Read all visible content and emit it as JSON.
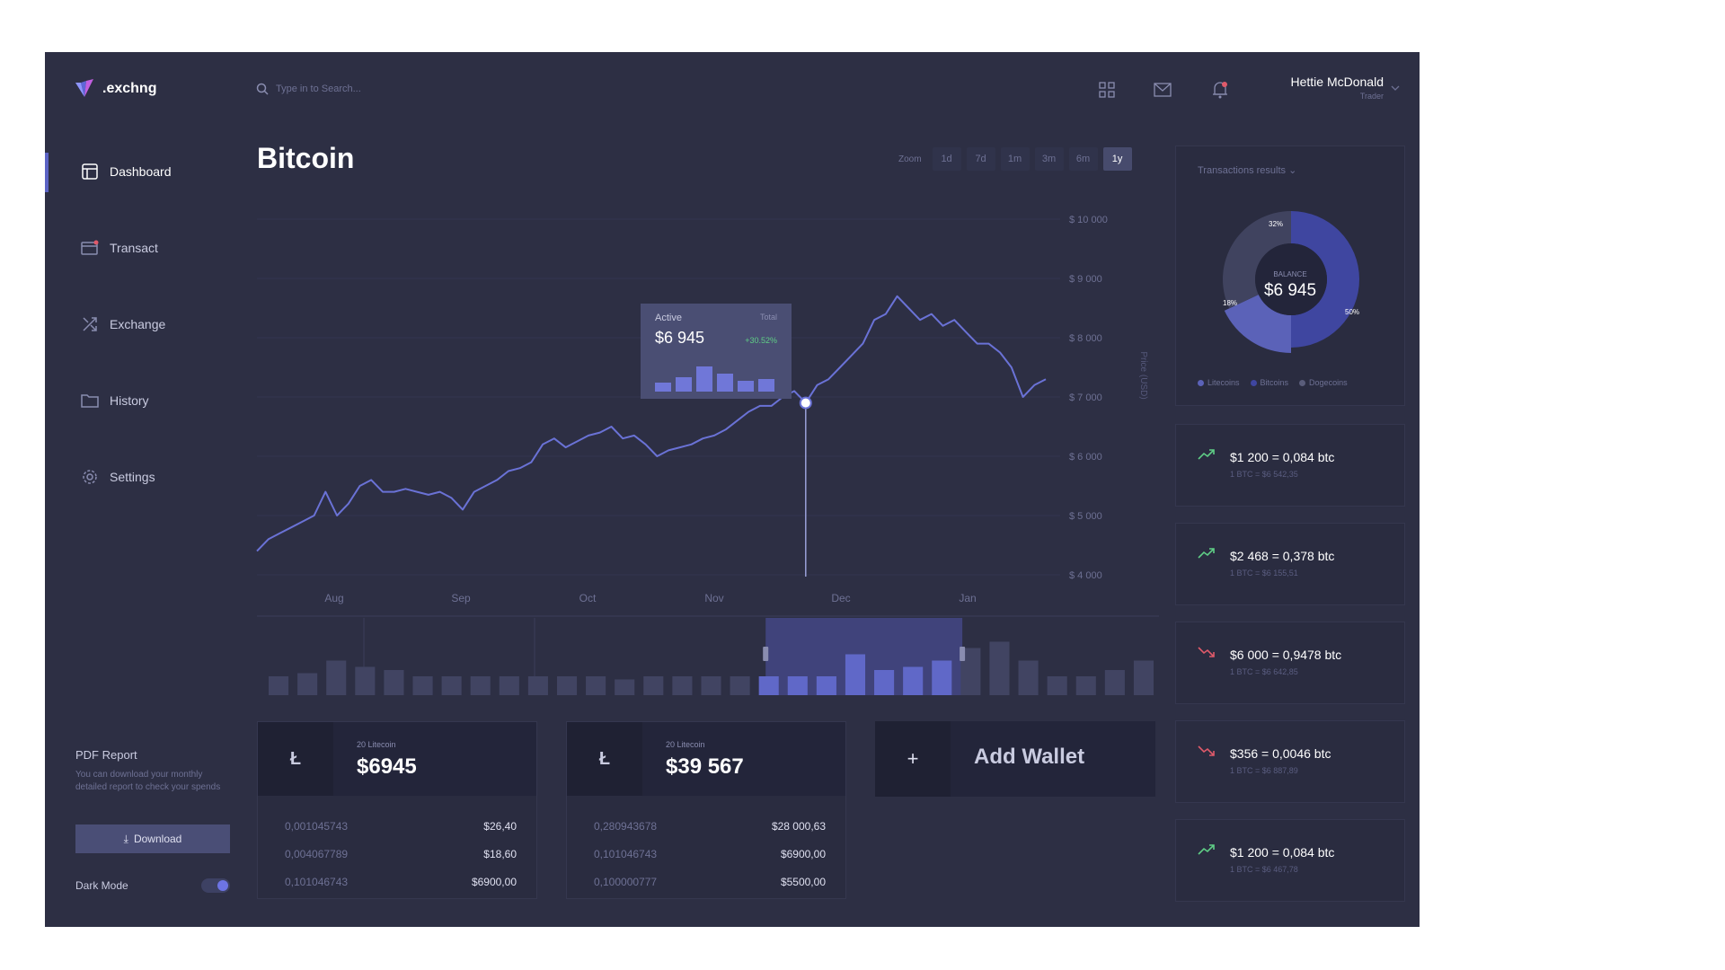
{
  "app": {
    "logo_text": ".exchng"
  },
  "search": {
    "placeholder": "Type in to Search..."
  },
  "nav": [
    {
      "label": "Dashboard"
    },
    {
      "label": "Transact"
    },
    {
      "label": "Exchange"
    },
    {
      "label": "History"
    },
    {
      "label": "Settings"
    }
  ],
  "pdf_report": {
    "title": "PDF Report",
    "description": "You can download your monthly detailed report to check your spends",
    "button": "Download"
  },
  "dark_mode": {
    "label": "Dark Mode",
    "on": true
  },
  "user": {
    "name": "Hettie McDonald",
    "role": "Trader"
  },
  "page": {
    "title": "Bitcoin"
  },
  "zoom": {
    "label": "Zoom",
    "options": [
      "1d",
      "7d",
      "1m",
      "3m",
      "6m",
      "1y"
    ],
    "selected": "1y"
  },
  "chart_data": {
    "type": "line",
    "title": "",
    "xlabel": "",
    "ylabel": "Price (USD)",
    "x_ticks": [
      "Aug",
      "Sep",
      "Oct",
      "Nov",
      "Dec",
      "Jan"
    ],
    "y_ticks": [
      "$ 10 000",
      "$ 9 000",
      "$ 8 000",
      "$ 7 000",
      "$ 6 000",
      "$ 5 000",
      "$ 4 000"
    ],
    "ylim": [
      4000,
      10000
    ],
    "series": [
      {
        "values": [
          4400,
          4600,
          4700,
          4800,
          4900,
          5000,
          5400,
          5000,
          5200,
          5500,
          5600,
          5400,
          5400,
          5450,
          5400,
          5350,
          5400,
          5300,
          5100,
          5400,
          5500,
          5600,
          5750,
          5800,
          5900,
          6200,
          6300,
          6150,
          6250,
          6350,
          6400,
          6500,
          6300,
          6350,
          6200,
          6000,
          6100,
          6150,
          6200,
          6300,
          6350,
          6450,
          6600,
          6750,
          6850,
          6850,
          7000,
          7100,
          6900,
          7200,
          7300,
          7500,
          7700,
          7900,
          8300,
          8400,
          8700,
          8500,
          8300,
          8400,
          8200,
          8300,
          8100,
          7900,
          7900,
          7750,
          7500,
          7000,
          7200,
          7300
        ]
      }
    ],
    "tooltip": {
      "label": "Active",
      "total_label": "Total",
      "value": "$6 945",
      "change": "+30.52%",
      "bars": [
        0.25,
        0.4,
        0.7,
        0.5,
        0.3,
        0.35
      ]
    },
    "volume": [
      0.3,
      0.35,
      0.55,
      0.45,
      0.4,
      0.3,
      0.3,
      0.3,
      0.3,
      0.3,
      0.3,
      0.3,
      0.25,
      0.3,
      0.3,
      0.3,
      0.3,
      0.3,
      0.3,
      0.3,
      0.65,
      0.4,
      0.45,
      0.55,
      0.75,
      0.85,
      0.55,
      0.3,
      0.3,
      0.4,
      0.55
    ],
    "range_selection": [
      0.56,
      0.78
    ]
  },
  "wallets": [
    {
      "icon": "Ł",
      "subtitle": "20 Litecoin",
      "amount": "$6945",
      "rows": [
        {
          "left": "0,001045743",
          "right": "$26,40"
        },
        {
          "left": "0,004067789",
          "right": "$18,60"
        },
        {
          "left": "0,101046743",
          "right": "$6900,00"
        }
      ]
    },
    {
      "icon": "Ł",
      "subtitle": "20 Litecoin",
      "amount": "$39 567",
      "rows": [
        {
          "left": "0,280943678",
          "right": "$28 000,63"
        },
        {
          "left": "0,101046743",
          "right": "$6900,00"
        },
        {
          "left": "0,100000777",
          "right": "$5500,00"
        }
      ]
    }
  ],
  "add_wallet": {
    "icon": "+",
    "label": "Add Wallet"
  },
  "transactions_results": {
    "title": "Transactions results",
    "center_label": "BALANCE",
    "center_value": "$6 945",
    "slices": [
      {
        "name": "Litecoins",
        "value": 18,
        "label": "18%",
        "color": "#5b62b8"
      },
      {
        "name": "Bitcoins",
        "value": 50,
        "label": "50%",
        "color": "#3f46a0"
      },
      {
        "name": "Dogecoins",
        "value": 32,
        "label": "32%",
        "color": "#40435f"
      }
    ]
  },
  "transactions": [
    {
      "main": "$1 200 = 0,084 btc",
      "sub": "1 BTC = $6 542,35",
      "trend": "up"
    },
    {
      "main": "$2 468 = 0,378 btc",
      "sub": "1 BTC = $6 155,51",
      "trend": "up"
    },
    {
      "main": "$6 000 = 0,9478 btc",
      "sub": "1 BTC = $6 642,85",
      "trend": "down"
    },
    {
      "main": "$356 = 0,0046 btc",
      "sub": "1 BTC = $6 887,89",
      "trend": "down"
    },
    {
      "main": "$1 200 = 0,084 btc",
      "sub": "1 BTC = $6 467,78",
      "trend": "up"
    }
  ],
  "colors": {
    "background": "#2d2f44",
    "accent": "#6d74e4",
    "line": "#6a72d6",
    "up": "#5fce86",
    "down": "#e05a6a"
  }
}
